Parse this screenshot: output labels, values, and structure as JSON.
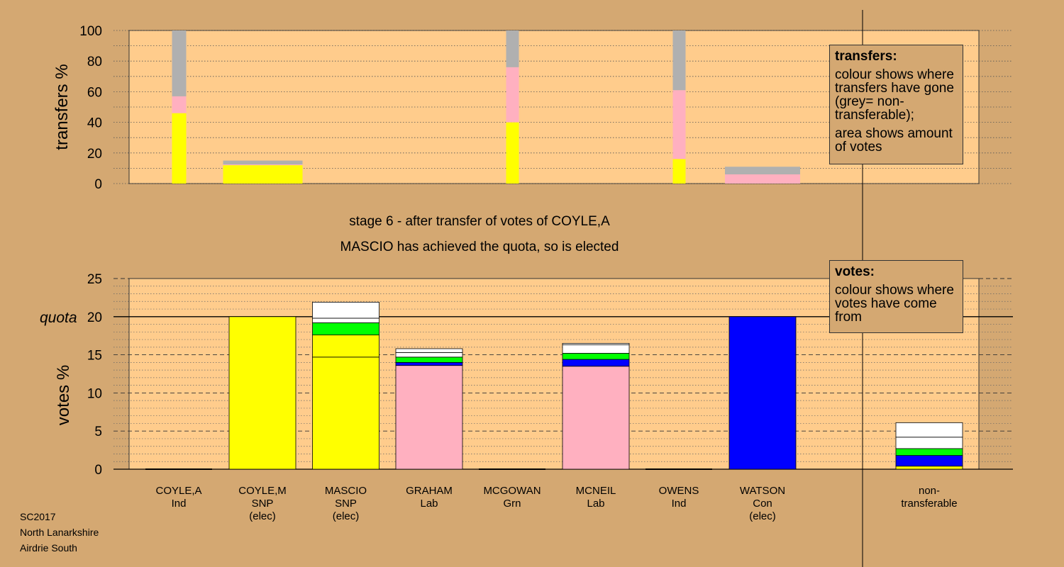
{
  "chart_data": [
    {
      "type": "bar",
      "stacked": true,
      "ylabel": "transfers %",
      "ylim": [
        0,
        100
      ],
      "yticks": [
        0,
        20,
        40,
        60,
        80,
        100
      ],
      "grid": "dotted",
      "colors": {
        "SNP": "#ffff00",
        "Lab": "#ffb0c0",
        "nontransferable": "#b0b0b0"
      },
      "bars": [
        {
          "candidate": "COYLE,A",
          "segments": [
            {
              "party": "SNP",
              "value": 46
            },
            {
              "party": "Lab",
              "value": 11
            },
            {
              "party": "nontransferable",
              "value": 43
            }
          ]
        },
        {
          "candidate": "COYLE,M",
          "segments": [
            {
              "party": "SNP",
              "value": 12
            },
            {
              "party": "Lab",
              "value": 0.5
            },
            {
              "party": "nontransferable",
              "value": 2.5
            }
          ]
        },
        {
          "candidate": "MCGOWAN",
          "segments": [
            {
              "party": "SNP",
              "value": 40
            },
            {
              "party": "Lab",
              "value": 36
            },
            {
              "party": "nontransferable",
              "value": 24
            }
          ]
        },
        {
          "candidate": "OWENS",
          "segments": [
            {
              "party": "SNP",
              "value": 16
            },
            {
              "party": "Lab",
              "value": 45
            },
            {
              "party": "nontransferable",
              "value": 39
            }
          ]
        },
        {
          "candidate": "WATSON",
          "segments": [
            {
              "party": "Lab",
              "value": 6
            },
            {
              "party": "nontransferable",
              "value": 5
            }
          ]
        }
      ]
    },
    {
      "type": "bar",
      "stacked": true,
      "ylabel": "votes %",
      "ylim": [
        0,
        25
      ],
      "yticks": [
        0,
        5,
        10,
        15,
        20,
        25
      ],
      "quota": 20,
      "quota_label": "quota",
      "grid": "dashed",
      "categories": [
        {
          "name": "COYLE,A",
          "party": "Ind",
          "status": ""
        },
        {
          "name": "COYLE,M",
          "party": "SNP",
          "status": "(elec)"
        },
        {
          "name": "MASCIO",
          "party": "SNP",
          "status": "(elec)"
        },
        {
          "name": "GRAHAM",
          "party": "Lab",
          "status": ""
        },
        {
          "name": "MCGOWAN",
          "party": "Grn",
          "status": ""
        },
        {
          "name": "MCNEIL",
          "party": "Lab",
          "status": ""
        },
        {
          "name": "OWENS",
          "party": "Ind",
          "status": ""
        },
        {
          "name": "WATSON",
          "party": "Con",
          "status": "(elec)"
        },
        {
          "name": "non-",
          "party": "transferable",
          "status": ""
        }
      ],
      "stacks": [
        [],
        [
          {
            "color": "#ffff00",
            "value": 20
          }
        ],
        [
          {
            "color": "#ffff00",
            "value": 14.7
          },
          {
            "color": "#ffff00",
            "value": 2.9
          },
          {
            "color": "#00ff00",
            "value": 1.6
          },
          {
            "color": "#ffffff",
            "value": 0.6
          },
          {
            "color": "#ffffff",
            "value": 2.1
          }
        ],
        [
          {
            "color": "#ffb0c0",
            "value": 13.6
          },
          {
            "color": "#0000ff",
            "value": 0.4
          },
          {
            "color": "#00ff00",
            "value": 0.7
          },
          {
            "color": "#ffffff",
            "value": 0.6
          },
          {
            "color": "#ffffff",
            "value": 0.5
          }
        ],
        [],
        [
          {
            "color": "#ffb0c0",
            "value": 13.5
          },
          {
            "color": "#0000ff",
            "value": 0.9
          },
          {
            "color": "#00ff00",
            "value": 0.8
          },
          {
            "color": "#ffffff",
            "value": 1.1
          },
          {
            "color": "#ffffff",
            "value": 0.2
          }
        ],
        [],
        [
          {
            "color": "#0000ff",
            "value": 20
          }
        ],
        [
          {
            "color": "#ffff00",
            "value": 0.4
          },
          {
            "color": "#0000ff",
            "value": 1.4
          },
          {
            "color": "#00ff00",
            "value": 0.9
          },
          {
            "color": "#ffffff",
            "value": 1.5
          },
          {
            "color": "#ffffff",
            "value": 1.9
          }
        ]
      ]
    }
  ],
  "titles": {
    "stage": "stage 6 - after transfer of votes of COYLE,A",
    "elected": "MASCIO has achieved the quota, so is elected"
  },
  "legend_transfers": {
    "title": "transfers:",
    "text1": "colour shows where transfers have gone (grey= non-transferable);",
    "text2": "area shows amount of votes"
  },
  "legend_votes": {
    "title": "votes:",
    "text1": "colour shows where votes have come from"
  },
  "caption": {
    "line1": "SC2017",
    "line2": "North Lanarkshire",
    "line3": "Airdrie South"
  }
}
